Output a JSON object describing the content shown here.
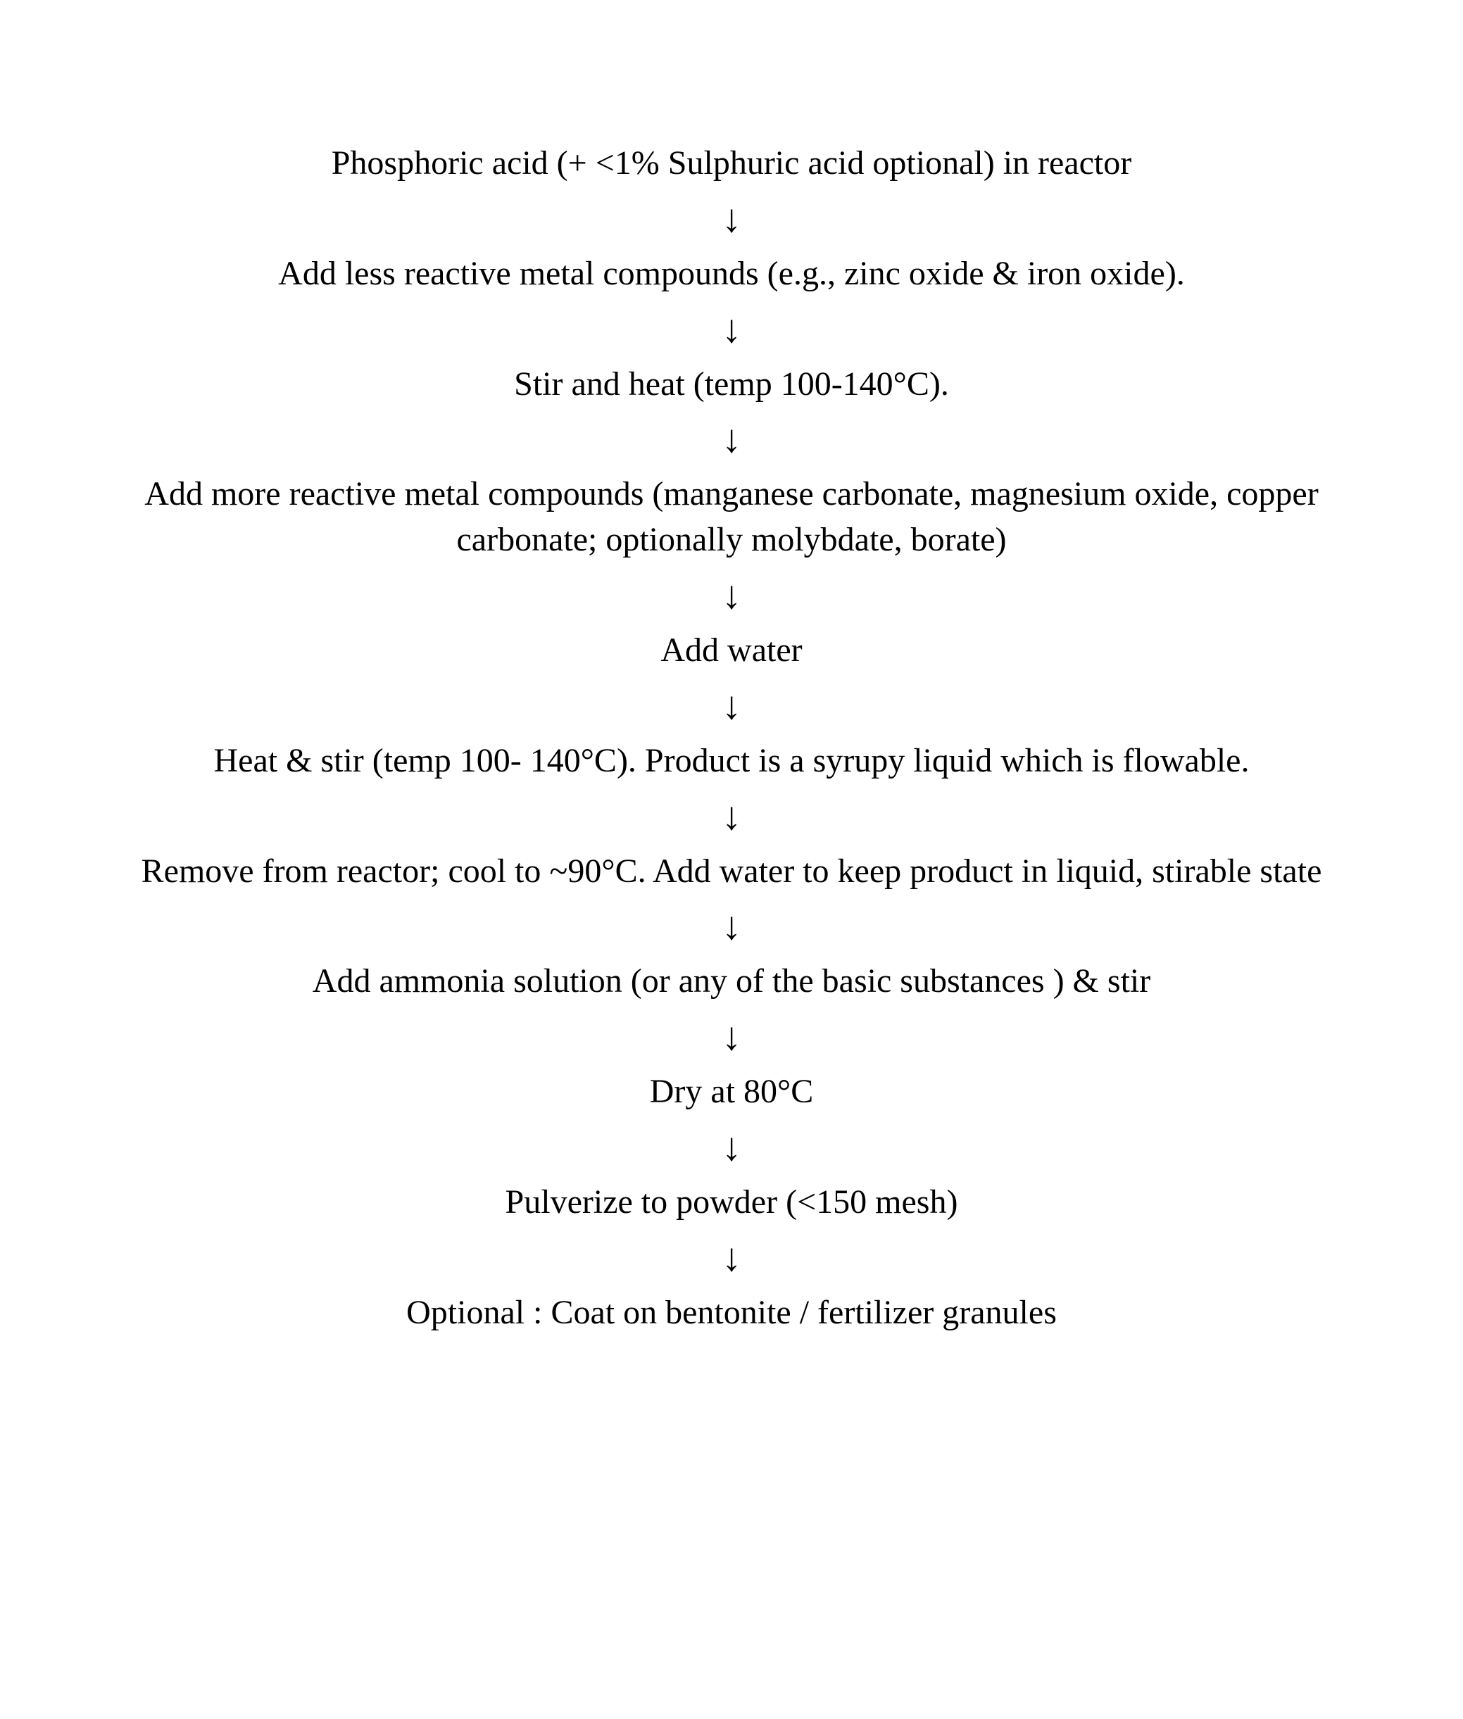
{
  "flowchart": {
    "type": "flowchart",
    "background_color": "#ffffff",
    "text_color": "#000000",
    "font_family": "Times New Roman",
    "step_fontsize_pt": 36,
    "arrow_glyph": "↓",
    "arrow_fontsize_pt": 42,
    "arrow_color": "#000000",
    "alignment": "center",
    "steps": [
      "Phosphoric acid (+ <1% Sulphuric acid optional) in reactor",
      "Add less reactive metal compounds (e.g., zinc oxide & iron oxide).",
      "Stir and heat (temp 100-140°C).",
      "Add more reactive metal compounds (manganese carbonate, magnesium oxide, copper carbonate; optionally molybdate, borate)",
      "Add water",
      "Heat & stir (temp 100- 140°C).  Product is a syrupy liquid which is flowable.",
      "Remove from reactor; cool to ~90°C.  Add water to keep product in liquid, stirable state",
      "Add ammonia solution (or any of the basic substances ) & stir",
      "Dry at 80°C",
      "Pulverize to powder (<150 mesh)",
      "Optional :  Coat on bentonite / fertilizer granules"
    ]
  }
}
